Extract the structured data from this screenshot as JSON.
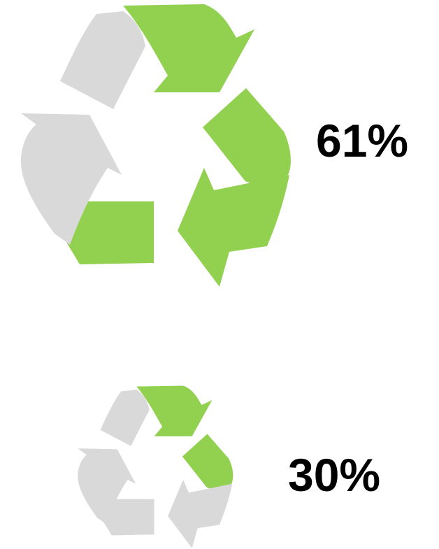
{
  "chart_data": [
    {
      "type": "pictogram",
      "icon": "recycle-icon",
      "segments_total": 6,
      "value": 61,
      "unit": "%",
      "label": "61%",
      "colors": {
        "filled": "#92d050",
        "empty": "#d9d9d9"
      }
    },
    {
      "type": "pictogram",
      "icon": "recycle-icon",
      "segments_total": 6,
      "value": 30,
      "unit": "%",
      "label": "30%",
      "colors": {
        "filled": "#92d050",
        "empty": "#d9d9d9"
      }
    }
  ]
}
